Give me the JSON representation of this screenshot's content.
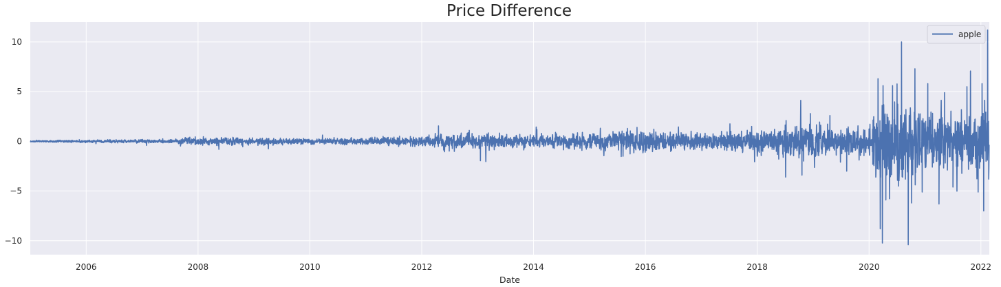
{
  "chart_data": {
    "type": "line",
    "title": "Price Difference",
    "xlabel": "Date",
    "ylabel": "",
    "xlim": [
      2005.0,
      2022.15
    ],
    "ylim": [
      -11.4,
      12.0
    ],
    "x_ticks": [
      {
        "value": 2006,
        "label": "2006"
      },
      {
        "value": 2008,
        "label": "2008"
      },
      {
        "value": 2010,
        "label": "2010"
      },
      {
        "value": 2012,
        "label": "2012"
      },
      {
        "value": 2014,
        "label": "2014"
      },
      {
        "value": 2016,
        "label": "2016"
      },
      {
        "value": 2018,
        "label": "2018"
      },
      {
        "value": 2020,
        "label": "2020"
      },
      {
        "value": 2022,
        "label": "2022"
      }
    ],
    "y_ticks": [
      {
        "value": 10,
        "label": "10"
      },
      {
        "value": 5,
        "label": "5"
      },
      {
        "value": 0,
        "label": "0"
      },
      {
        "value": -5,
        "label": "−5"
      },
      {
        "value": -10,
        "label": "−10"
      }
    ],
    "grid": true,
    "legend_position": "top-right",
    "series": [
      {
        "name": "apple",
        "color": "#4c72b0",
        "approximate": true,
        "envelope": [
          {
            "x": 2005.0,
            "amp": 0.05
          },
          {
            "x": 2007.5,
            "amp": 0.15
          },
          {
            "x": 2008.0,
            "amp": 0.28
          },
          {
            "x": 2009.0,
            "amp": 0.25
          },
          {
            "x": 2010.0,
            "amp": 0.2
          },
          {
            "x": 2011.0,
            "amp": 0.25
          },
          {
            "x": 2012.0,
            "amp": 0.35
          },
          {
            "x": 2012.5,
            "amp": 0.6
          },
          {
            "x": 2013.0,
            "amp": 0.55
          },
          {
            "x": 2014.0,
            "amp": 0.45
          },
          {
            "x": 2015.0,
            "amp": 0.55
          },
          {
            "x": 2015.8,
            "amp": 0.8
          },
          {
            "x": 2016.5,
            "amp": 0.6
          },
          {
            "x": 2017.5,
            "amp": 0.7
          },
          {
            "x": 2018.3,
            "amp": 0.85
          },
          {
            "x": 2018.8,
            "amp": 1.3
          },
          {
            "x": 2019.5,
            "amp": 0.9
          },
          {
            "x": 2020.0,
            "amp": 1.1
          },
          {
            "x": 2020.2,
            "amp": 3.2
          },
          {
            "x": 2020.7,
            "amp": 2.6
          },
          {
            "x": 2021.0,
            "amp": 2.1
          },
          {
            "x": 2021.5,
            "amp": 1.9
          },
          {
            "x": 2022.15,
            "amp": 2.4
          }
        ],
        "spikes": [
          {
            "x": 2007.95,
            "y": 0.45
          },
          {
            "x": 2008.8,
            "y": -0.55
          },
          {
            "x": 2012.3,
            "y": 1.55
          },
          {
            "x": 2012.85,
            "y": 1.1
          },
          {
            "x": 2013.05,
            "y": -1.95
          },
          {
            "x": 2015.6,
            "y": -1.5
          },
          {
            "x": 2015.85,
            "y": 1.4
          },
          {
            "x": 2017.9,
            "y": 1.5
          },
          {
            "x": 2018.8,
            "y": -3.4
          },
          {
            "x": 2018.95,
            "y": 2.8
          },
          {
            "x": 2019.3,
            "y": 2.6
          },
          {
            "x": 2019.6,
            "y": -3.0
          },
          {
            "x": 2020.12,
            "y": -3.6
          },
          {
            "x": 2020.16,
            "y": 6.3
          },
          {
            "x": 2020.2,
            "y": -8.8
          },
          {
            "x": 2020.25,
            "y": 5.6
          },
          {
            "x": 2020.3,
            "y": -5.9
          },
          {
            "x": 2020.42,
            "y": 5.6
          },
          {
            "x": 2020.58,
            "y": 10.0
          },
          {
            "x": 2020.65,
            "y": -3.8
          },
          {
            "x": 2020.7,
            "y": -10.4
          },
          {
            "x": 2020.76,
            "y": -6.2
          },
          {
            "x": 2020.82,
            "y": 7.3
          },
          {
            "x": 2020.95,
            "y": -5.1
          },
          {
            "x": 2021.05,
            "y": 5.8
          },
          {
            "x": 2021.25,
            "y": -6.3
          },
          {
            "x": 2021.35,
            "y": 4.9
          },
          {
            "x": 2021.5,
            "y": -4.6
          },
          {
            "x": 2021.75,
            "y": 5.5
          },
          {
            "x": 2021.95,
            "y": -5.1
          },
          {
            "x": 2022.02,
            "y": 5.8
          },
          {
            "x": 2022.05,
            "y": -7.0
          },
          {
            "x": 2022.12,
            "y": 11.2
          },
          {
            "x": 2022.14,
            "y": -3.8
          }
        ]
      }
    ]
  }
}
